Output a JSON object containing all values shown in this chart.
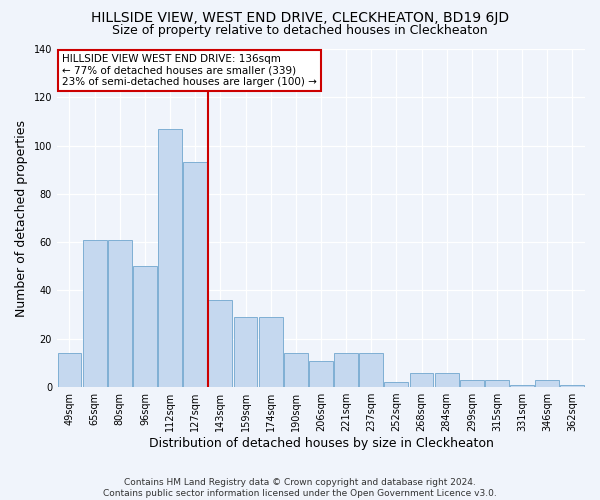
{
  "title": "HILLSIDE VIEW, WEST END DRIVE, CLECKHEATON, BD19 6JD",
  "subtitle": "Size of property relative to detached houses in Cleckheaton",
  "xlabel": "Distribution of detached houses by size in Cleckheaton",
  "ylabel": "Number of detached properties",
  "categories": [
    "49sqm",
    "65sqm",
    "80sqm",
    "96sqm",
    "112sqm",
    "127sqm",
    "143sqm",
    "159sqm",
    "174sqm",
    "190sqm",
    "206sqm",
    "221sqm",
    "237sqm",
    "252sqm",
    "268sqm",
    "284sqm",
    "299sqm",
    "315sqm",
    "331sqm",
    "346sqm",
    "362sqm"
  ],
  "values": [
    14,
    61,
    61,
    50,
    107,
    93,
    36,
    29,
    29,
    14,
    11,
    14,
    14,
    2,
    6,
    6,
    3,
    3,
    1,
    3,
    1
  ],
  "bar_color": "#c5d8ef",
  "bar_edge_color": "#7fafd4",
  "ref_line_color": "#cc0000",
  "annotation_text": "HILLSIDE VIEW WEST END DRIVE: 136sqm\n← 77% of detached houses are smaller (339)\n23% of semi-detached houses are larger (100) →",
  "annotation_box_color": "#ffffff",
  "annotation_box_edge": "#cc0000",
  "ylim": [
    0,
    140
  ],
  "yticks": [
    0,
    20,
    40,
    60,
    80,
    100,
    120,
    140
  ],
  "footer": "Contains HM Land Registry data © Crown copyright and database right 2024.\nContains public sector information licensed under the Open Government Licence v3.0.",
  "bg_color": "#f0f4fb",
  "plot_bg_color": "#f0f4fb",
  "title_fontsize": 10,
  "subtitle_fontsize": 9,
  "axis_label_fontsize": 9,
  "tick_fontsize": 7,
  "footer_fontsize": 6.5,
  "annotation_fontsize": 7.5
}
